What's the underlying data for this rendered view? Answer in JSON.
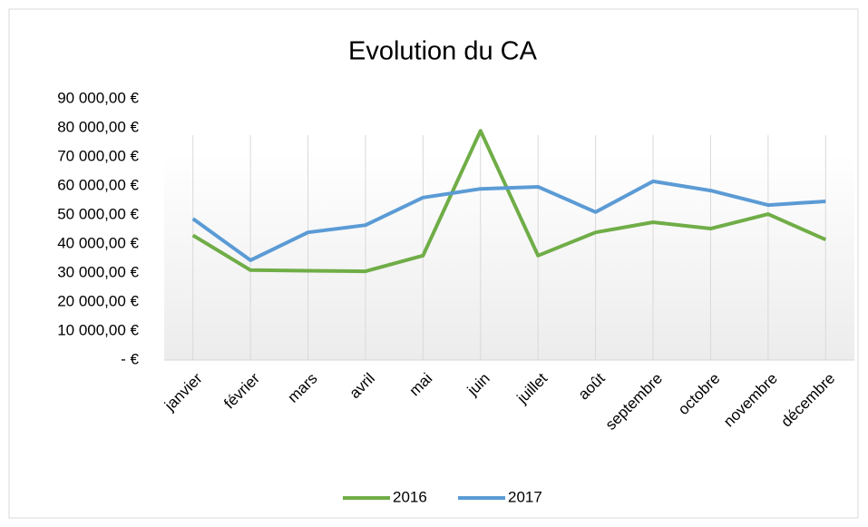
{
  "chart_data": {
    "type": "line",
    "title": "Evolution du CA",
    "categories": [
      "janvier",
      "février",
      "mars",
      "avril",
      "mai",
      "juin",
      "juillet",
      "août",
      "septembre",
      "octobre",
      "novembre",
      "décembre"
    ],
    "series": [
      {
        "name": "2016",
        "color": "#70ad47",
        "values": [
          43000,
          31000,
          30800,
          30600,
          36000,
          79000,
          36000,
          44000,
          47500,
          45300,
          50300,
          41500
        ]
      },
      {
        "name": "2017",
        "color": "#5b9bd5",
        "values": [
          48700,
          34400,
          44000,
          46500,
          56000,
          59000,
          59700,
          51000,
          61600,
          58400,
          53400,
          54700
        ]
      }
    ],
    "ylim": [
      0,
      90000
    ],
    "yticks": [
      {
        "value": 0,
        "label": "-   €"
      },
      {
        "value": 10000,
        "label": "10 000,00 €"
      },
      {
        "value": 20000,
        "label": "20 000,00 €"
      },
      {
        "value": 30000,
        "label": "30 000,00 €"
      },
      {
        "value": 40000,
        "label": "40 000,00 €"
      },
      {
        "value": 50000,
        "label": "50 000,00 €"
      },
      {
        "value": 60000,
        "label": "60 000,00 €"
      },
      {
        "value": 70000,
        "label": "70 000,00 €"
      },
      {
        "value": 80000,
        "label": "80 000,00 €"
      },
      {
        "value": 90000,
        "label": "90 000,00 €"
      }
    ],
    "grid": true,
    "legend": "bottom"
  }
}
